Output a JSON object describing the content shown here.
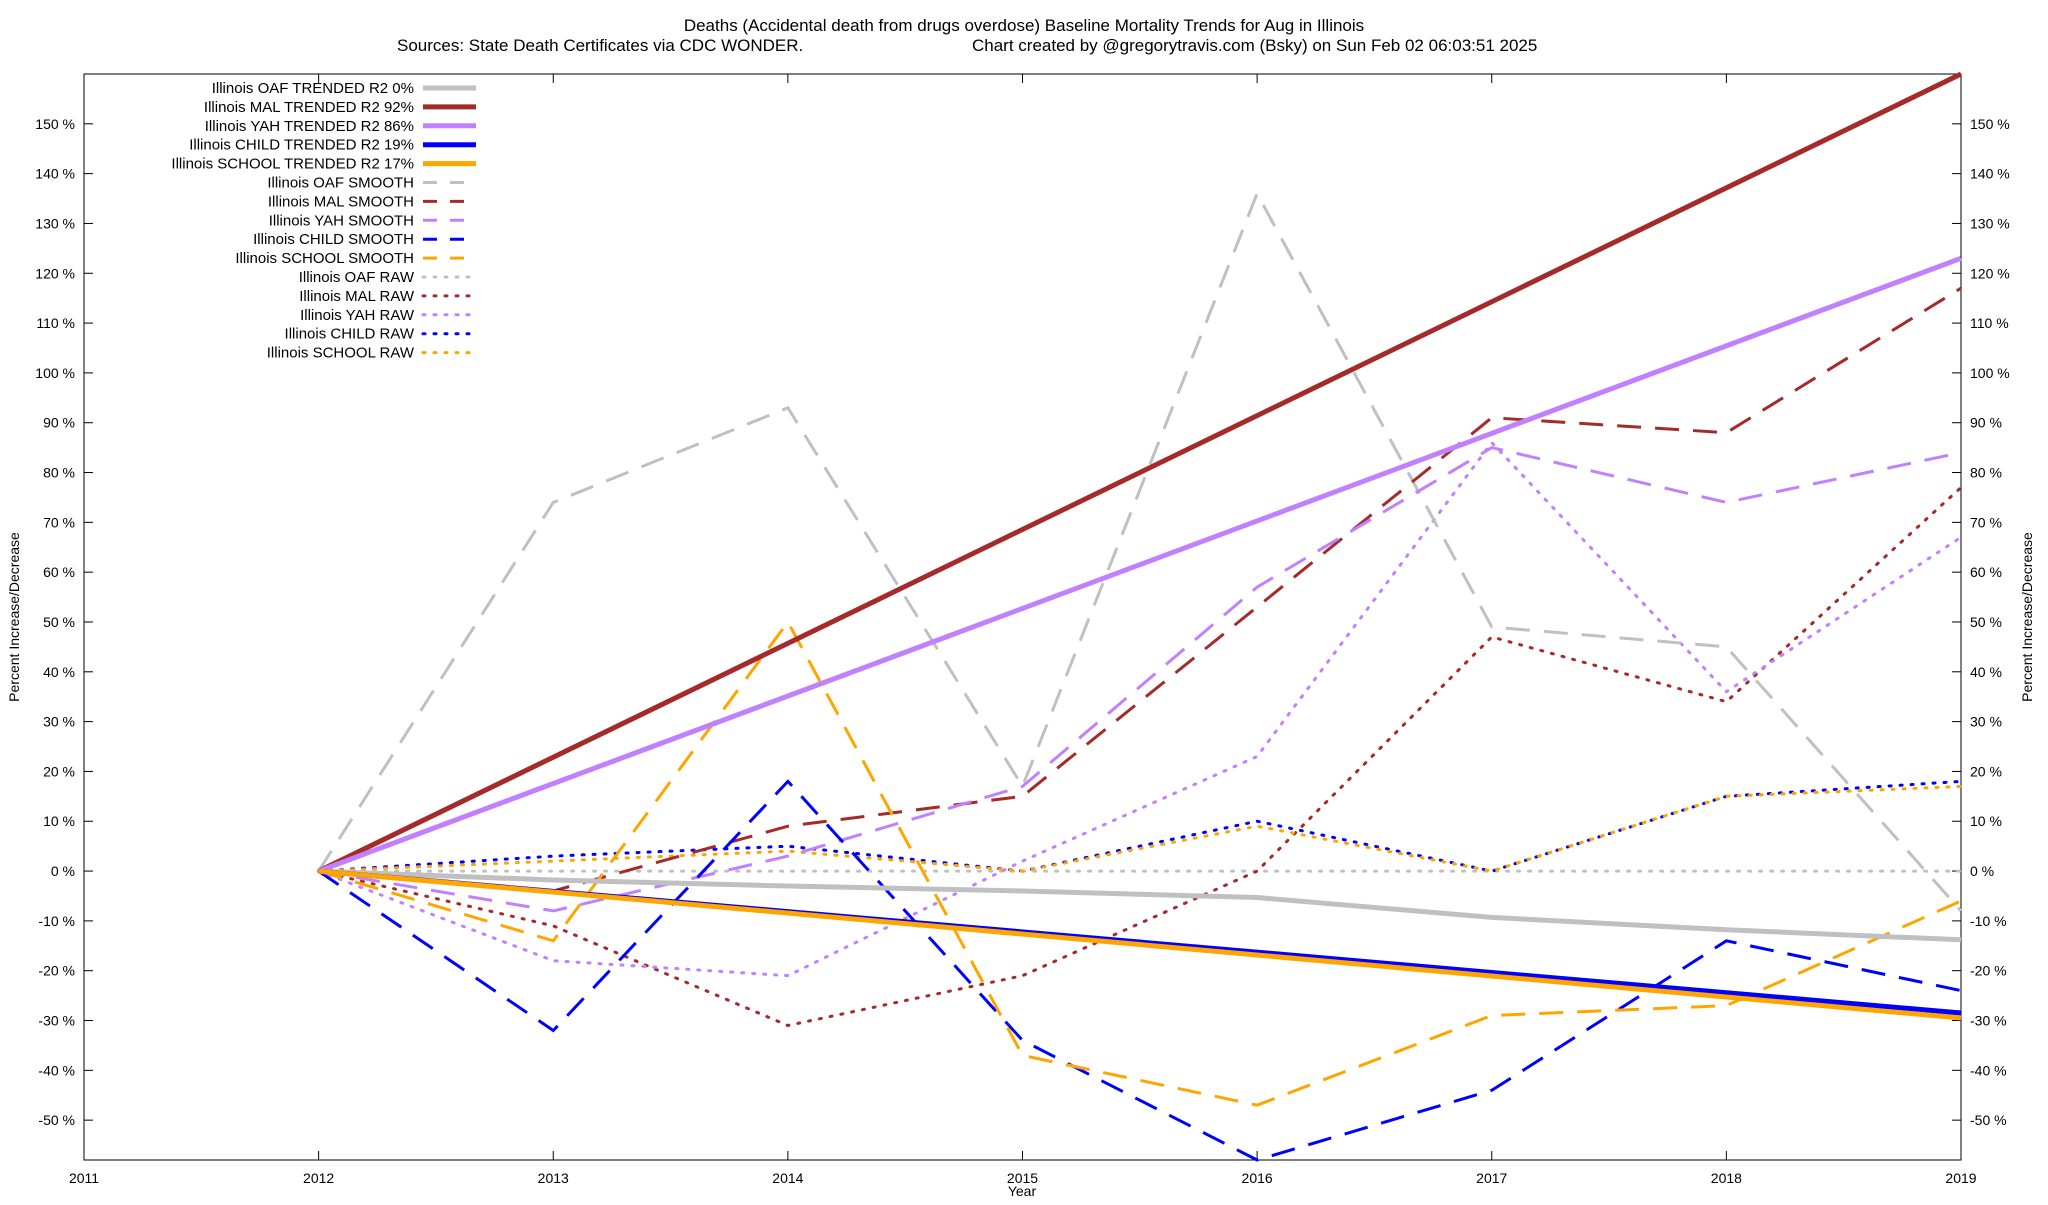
{
  "chart_data": {
    "type": "line",
    "title": "Deaths (Accidental death from drugs overdose)  Baseline Mortality Trends for Aug in Illinois",
    "subtitle_left": "Sources: State Death Certificates via CDC WONDER.",
    "subtitle_right": "Chart created by @gregorytravis.com (Bsky) on Sun Feb 02 06:03:51 2025",
    "xlabel": "Year",
    "ylabel": "Percent Increase/Decrease",
    "y2label": "Percent Increase/Decrease",
    "xlim": [
      2011,
      2019
    ],
    "ylim": [
      -58,
      160
    ],
    "x_ticks": [
      "2011",
      "2012",
      "2013",
      "2014",
      "2015",
      "2016",
      "2017",
      "2018",
      "2019"
    ],
    "y_ticks": [
      -50,
      -40,
      -30,
      -20,
      -10,
      0,
      10,
      20,
      30,
      40,
      50,
      60,
      70,
      80,
      90,
      100,
      110,
      120,
      130,
      140,
      150
    ],
    "y_tick_suffix": " %",
    "legend_position": "top-left",
    "grid": false,
    "series": [
      {
        "name": "Illinois OAF TRENDED R2  0%",
        "style": "solid",
        "color": "#c0c0c0",
        "x": [
          2012,
          2013,
          2014,
          2015,
          2016,
          2017,
          2018,
          2019
        ],
        "values": [
          0,
          -1.8,
          -3.0,
          -4.0,
          -5.3,
          -9.3,
          -11.8,
          -13.8
        ]
      },
      {
        "name": "Illinois MAL TRENDED R2  92%",
        "style": "solid",
        "color": "#a52a2a",
        "x": [
          2012,
          2019
        ],
        "values": [
          0,
          160
        ]
      },
      {
        "name": "Illinois YAH TRENDED R2  86%",
        "style": "solid",
        "color": "#c080ff",
        "x": [
          2012,
          2019
        ],
        "values": [
          0,
          123
        ]
      },
      {
        "name": "Illinois CHILD TRENDED R2  19%",
        "style": "solid",
        "color": "#0000ff",
        "x": [
          2012,
          2019
        ],
        "values": [
          0,
          -28.5
        ]
      },
      {
        "name": "Illinois SCHOOL TRENDED R2  17%",
        "style": "solid",
        "color": "#ffa500",
        "x": [
          2012,
          2019
        ],
        "values": [
          0,
          -29.5
        ]
      },
      {
        "name": "Illinois OAF SMOOTH",
        "style": "dashed",
        "color": "#c0c0c0",
        "x": [
          2012,
          2013,
          2014,
          2015,
          2016,
          2017,
          2018,
          2019
        ],
        "values": [
          0,
          74,
          93,
          17,
          136,
          49,
          45,
          -8
        ]
      },
      {
        "name": "Illinois MAL SMOOTH",
        "style": "dashed",
        "color": "#a52a2a",
        "x": [
          2012,
          2013,
          2014,
          2015,
          2016,
          2017,
          2018,
          2019
        ],
        "values": [
          0,
          -4,
          9,
          15,
          53,
          91,
          88,
          117
        ]
      },
      {
        "name": "Illinois YAH SMOOTH",
        "style": "dashed",
        "color": "#c080ff",
        "x": [
          2012,
          2013,
          2014,
          2015,
          2016,
          2017,
          2018,
          2019
        ],
        "values": [
          0,
          -8,
          3,
          17,
          57,
          85,
          74,
          84
        ]
      },
      {
        "name": "Illinois CHILD SMOOTH",
        "style": "dashed",
        "color": "#0000ff",
        "x": [
          2012,
          2013,
          2014,
          2015,
          2016,
          2017,
          2018,
          2019
        ],
        "values": [
          0,
          -32,
          18,
          -34,
          -58,
          -44,
          -14,
          -24
        ]
      },
      {
        "name": "Illinois SCHOOL SMOOTH",
        "style": "dashed",
        "color": "#ffa500",
        "x": [
          2012,
          2013,
          2014,
          2015,
          2016,
          2017,
          2018,
          2019
        ],
        "values": [
          0,
          -14,
          50,
          -37,
          -47,
          -29,
          -27,
          -6
        ]
      },
      {
        "name": "Illinois OAF RAW",
        "style": "dotted",
        "color": "#c0c0c0",
        "x": [
          2012,
          2013,
          2014,
          2015,
          2016,
          2017,
          2018,
          2019
        ],
        "values": [
          0,
          0,
          0,
          0,
          0,
          0,
          0,
          0
        ]
      },
      {
        "name": "Illinois MAL RAW",
        "style": "dotted",
        "color": "#a52a2a",
        "x": [
          2012,
          2013,
          2014,
          2015,
          2016,
          2017,
          2018,
          2019
        ],
        "values": [
          0,
          -11,
          -31,
          -21,
          0,
          47,
          34,
          77
        ]
      },
      {
        "name": "Illinois YAH RAW",
        "style": "dotted",
        "color": "#c080ff",
        "x": [
          2012,
          2013,
          2014,
          2015,
          2016,
          2017,
          2018,
          2019
        ],
        "values": [
          0,
          -18,
          -21,
          2,
          23,
          86,
          36,
          67
        ]
      },
      {
        "name": "Illinois CHILD RAW",
        "style": "dotted",
        "color": "#0000ff",
        "x": [
          2012,
          2013,
          2014,
          2015,
          2016,
          2017,
          2018,
          2019
        ],
        "values": [
          0,
          3,
          5,
          0,
          10,
          0,
          15,
          18
        ]
      },
      {
        "name": "Illinois SCHOOL RAW",
        "style": "dotted",
        "color": "#ffa500",
        "x": [
          2012,
          2013,
          2014,
          2015,
          2016,
          2017,
          2018,
          2019
        ],
        "values": [
          0,
          2,
          4,
          0,
          9,
          0,
          15,
          17
        ]
      }
    ]
  }
}
